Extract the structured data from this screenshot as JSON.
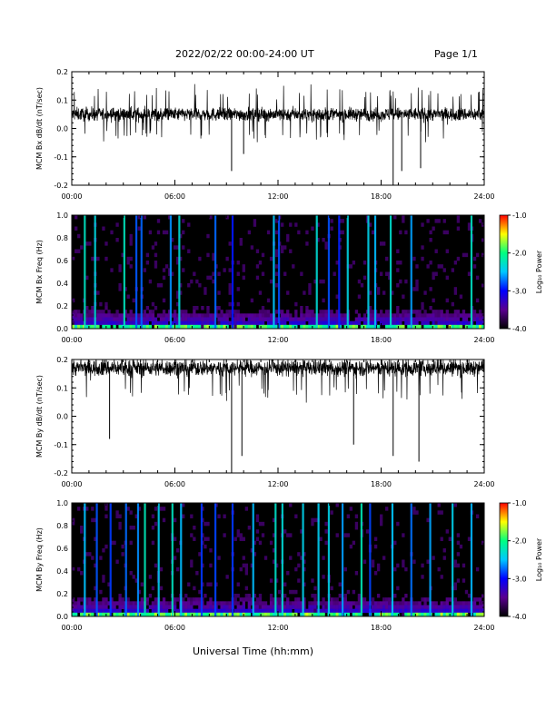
{
  "header": {
    "title": "2022/02/22  00:00-24:00 UT",
    "page": "Page 1/1"
  },
  "footer": {
    "xlabel": "Universal Time (hh:mm)"
  },
  "colorbar": {
    "label": "Log₁₀ Power",
    "ticks": [
      "-1.0",
      "-2.0",
      "-3.0",
      "-4.0"
    ],
    "range": [
      -4.0,
      -1.0
    ],
    "colors": [
      "#000000",
      "#5a0090",
      "#0000ff",
      "#00c8ff",
      "#00ff80",
      "#ffff00",
      "#ff0000"
    ]
  },
  "chart_data": [
    {
      "type": "line",
      "ylabel": "MCM Bx dB/dt (nT/sec)",
      "yticks": [
        "0.2",
        "0.1",
        "0.0",
        "-0.1",
        "-0.2"
      ],
      "ylim": [
        -0.2,
        0.2
      ],
      "xticks": [
        "00:00",
        "06:00",
        "12:00",
        "18:00",
        "24:00"
      ],
      "xlim": [
        0,
        24
      ],
      "series": [
        {
          "baseline": 0.05,
          "noise_amplitude": 0.025
        }
      ],
      "spikes": [
        {
          "x": 9.3,
          "y": -0.15
        },
        {
          "x": 10.0,
          "y": -0.09
        },
        {
          "x": 18.7,
          "y": -0.2
        },
        {
          "x": 19.2,
          "y": -0.15
        },
        {
          "x": 20.3,
          "y": -0.14
        }
      ]
    },
    {
      "type": "heatmap",
      "ylabel": "MCM Bx Freq (Hz)",
      "yticks": [
        "1.0",
        "0.8",
        "0.6",
        "0.4",
        "0.2",
        "0.0"
      ],
      "ylim": [
        0.0,
        1.0
      ],
      "xticks": [
        "00:00",
        "06:00",
        "12:00",
        "18:00",
        "24:00"
      ],
      "xlim": [
        0,
        24
      ],
      "bright_lines_hours": [
        0.7,
        1.3,
        3.0,
        3.7,
        4.0,
        5.7,
        6.2,
        8.3,
        9.3,
        11.7,
        12.0,
        14.2,
        14.9,
        15.5,
        16.0,
        17.2,
        17.6,
        18.5,
        19.7,
        23.2
      ]
    },
    {
      "type": "line",
      "ylabel": "MCM By dB/dt (nT/sec)",
      "yticks": [
        "0.2",
        "0.1",
        "0.0",
        "-0.1",
        "-0.2"
      ],
      "ylim": [
        -0.2,
        0.2
      ],
      "xticks": [
        "00:00",
        "06:00",
        "12:00",
        "18:00",
        "24:00"
      ],
      "xlim": [
        0,
        24
      ],
      "series": [
        {
          "baseline": 0.17,
          "noise_amplitude": 0.03
        }
      ],
      "spikes": [
        {
          "x": 2.2,
          "y": -0.08
        },
        {
          "x": 9.3,
          "y": -0.2
        },
        {
          "x": 9.9,
          "y": -0.14
        },
        {
          "x": 16.4,
          "y": -0.1
        },
        {
          "x": 18.7,
          "y": -0.14
        },
        {
          "x": 20.2,
          "y": -0.16
        }
      ]
    },
    {
      "type": "heatmap",
      "ylabel": "MCM By Freq (Hz)",
      "yticks": [
        "1.0",
        "0.8",
        "0.6",
        "0.4",
        "0.2",
        "0.0"
      ],
      "ylim": [
        0.0,
        1.0
      ],
      "xticks": [
        "00:00",
        "06:00",
        "12:00",
        "18:00",
        "24:00"
      ],
      "xlim": [
        0,
        24
      ],
      "bright_lines_hours": [
        0.7,
        1.4,
        2.2,
        3.1,
        3.8,
        4.2,
        5.0,
        5.8,
        6.3,
        7.5,
        8.3,
        9.3,
        10.5,
        11.8,
        12.2,
        13.4,
        14.3,
        14.9,
        15.7,
        16.8,
        17.3,
        18.6,
        19.7,
        20.8,
        22.1,
        23.2
      ]
    }
  ]
}
